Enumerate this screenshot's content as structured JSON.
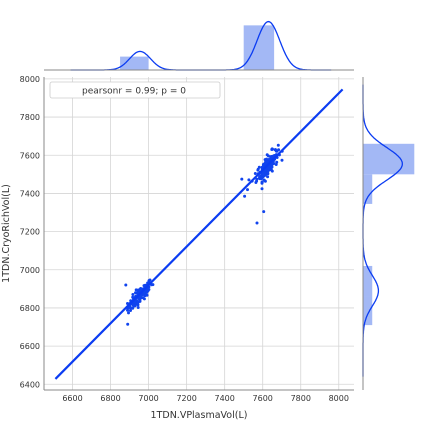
{
  "chart_data": {
    "type": "scatter",
    "kind": "jointplot",
    "xlabel": "1TDN.VPlasmaVol(L)",
    "ylabel": "1TDN.CryoRichVol(L)",
    "xlim": [
      6450,
      8080
    ],
    "ylim": [
      6370,
      8010
    ],
    "xticks": [
      6600,
      6800,
      7000,
      7200,
      7400,
      7600,
      7800,
      8000
    ],
    "yticks": [
      6400,
      6600,
      6800,
      7000,
      7200,
      7400,
      7600,
      7800,
      8000
    ],
    "grid": true,
    "legend": {
      "text": "pearsonr = 0.99; p = 0",
      "position": "top-left"
    },
    "regression_line": {
      "x": [
        6510,
        8020
      ],
      "y": [
        6428,
        7945
      ]
    },
    "clusters": [
      {
        "center_x": 6955,
        "center_y": 6865,
        "sd_x": 32,
        "sd_y": 38,
        "count": 120,
        "cov": 0.85
      },
      {
        "center_x": 7625,
        "center_y": 7545,
        "sd_x": 28,
        "sd_y": 40,
        "count": 170,
        "cov": 0.75
      }
    ],
    "outliers": [
      {
        "x": 7570,
        "y": 7245
      },
      {
        "x": 7605,
        "y": 7305
      },
      {
        "x": 7505,
        "y": 7385
      },
      {
        "x": 7520,
        "y": 7420
      },
      {
        "x": 7490,
        "y": 7475
      },
      {
        "x": 6890,
        "y": 6715
      },
      {
        "x": 6880,
        "y": 6920
      }
    ],
    "marginal_x": {
      "hist": [
        {
          "range": [
            6850,
            7000
          ],
          "density": 0.3
        },
        {
          "range": [
            7500,
            7660
          ],
          "density": 1.0
        }
      ],
      "kde_peaks": [
        {
          "center": 6955,
          "height": 0.3,
          "width": 55
        },
        {
          "center": 7630,
          "height": 0.78,
          "width": 60
        }
      ]
    },
    "marginal_y": {
      "hist": [
        {
          "range": [
            7500,
            7660
          ],
          "density": 1.0
        },
        {
          "range": [
            7345,
            7500
          ],
          "density": 0.18
        },
        {
          "range": [
            6710,
            6860
          ],
          "density": 0.18
        },
        {
          "range": [
            6860,
            7020
          ],
          "density": 0.18
        }
      ],
      "kde_peaks": [
        {
          "center": 6890,
          "height": 0.27,
          "width": 80
        },
        {
          "center": 7555,
          "height": 0.69,
          "width": 85
        }
      ]
    },
    "colors": {
      "points": "#1144ee",
      "line": "#0b3cf2",
      "hist": "#a3b8f5",
      "grid": "#d5d5d5",
      "axis": "#888888",
      "text": "#333333"
    }
  }
}
